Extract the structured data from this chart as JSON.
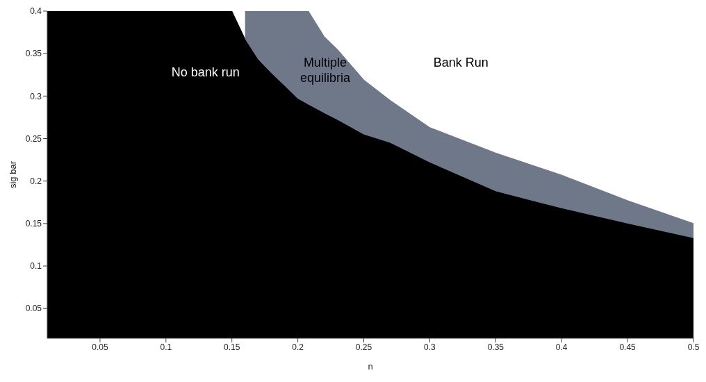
{
  "chart_data": {
    "type": "area",
    "stacked": true,
    "xlabel": "n",
    "ylabel": "sig bar",
    "xlim": [
      0.01,
      0.5
    ],
    "ylim": [
      0.015,
      0.4
    ],
    "xticks": [
      0.05,
      0.1,
      0.15,
      0.2,
      0.25,
      0.3,
      0.35,
      0.4,
      0.45,
      0.5
    ],
    "yticks": [
      0.05,
      0.1,
      0.15,
      0.2,
      0.25,
      0.3,
      0.35,
      0.4
    ],
    "x": [
      0.01,
      0.15,
      0.16,
      0.17,
      0.18,
      0.2,
      0.208,
      0.22,
      0.23,
      0.25,
      0.27,
      0.3,
      0.35,
      0.4,
      0.45,
      0.5
    ],
    "series": [
      {
        "color": "#000000",
        "values": [
          0.4,
          0.4,
          0.367,
          0.343,
          0.327,
          0.297,
          0.29,
          0.28,
          0.272,
          0.255,
          0.245,
          0.222,
          0.188,
          0.168,
          0.15,
          0.133
        ]
      },
      {
        "color": "#6e7889",
        "values": [
          null,
          null,
          0.033,
          0.057,
          0.073,
          0.103,
          0.11,
          0.09,
          0.083,
          0.064,
          0.05,
          0.041,
          0.045,
          0.039,
          0.027,
          0.017
        ]
      }
    ],
    "annotations": [
      "No bank run",
      "Multiple\nequilibria",
      "Bank Run"
    ]
  }
}
